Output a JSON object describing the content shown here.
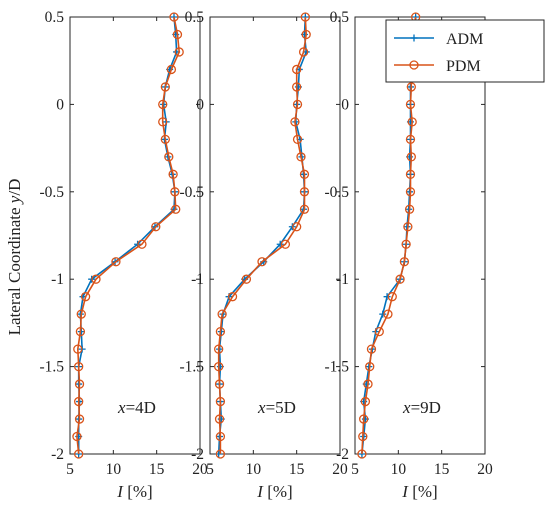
{
  "figure": {
    "ylabel": "Lateral Coordinate y/D",
    "ylabel_plain": "Lateral Coordinate ",
    "ylabel_italic": "y",
    "ylabel_rest": "/D"
  },
  "legend": {
    "items": [
      {
        "label": "ADM",
        "marker": "plus",
        "color": "#0072BD"
      },
      {
        "label": "PDM",
        "marker": "circle",
        "color": "#D95319"
      }
    ]
  },
  "chart_data": [
    {
      "type": "line",
      "annotation": "x=4D",
      "annotation_italic": "x",
      "annotation_rest": "=4D",
      "xlabel": "I [%]",
      "xlabel_italic": "I",
      "xlabel_rest": " [%]",
      "xlim": [
        5,
        20
      ],
      "ylim": [
        -2,
        0.5
      ],
      "xticks": [
        5,
        10,
        15,
        20
      ],
      "yticks": [
        -2,
        -1.5,
        -1,
        -0.5,
        0,
        0.5
      ],
      "ytick_labels": [
        "-2",
        "-1.5",
        "-1",
        "-0.5",
        "0",
        "0.5"
      ],
      "y": [
        0.5,
        0.4,
        0.3,
        0.2,
        0.1,
        0,
        -0.1,
        -0.2,
        -0.3,
        -0.4,
        -0.5,
        -0.6,
        -0.7,
        -0.8,
        -0.9,
        -1.0,
        -1.1,
        -1.2,
        -1.3,
        -1.4,
        -1.5,
        -1.6,
        -1.7,
        -1.8,
        -1.9,
        -2.0
      ],
      "series": [
        {
          "name": "ADM",
          "color": "#0072BD",
          "marker": "plus",
          "x": [
            17.0,
            17.2,
            17.3,
            16.5,
            16.0,
            15.8,
            16.1,
            15.9,
            16.3,
            16.8,
            17.1,
            17.0,
            14.8,
            12.8,
            10.2,
            7.5,
            6.5,
            6.2,
            6.3,
            6.4,
            6.0,
            6.0,
            6.1,
            6.0,
            6.0,
            6.0
          ]
        },
        {
          "name": "PDM",
          "color": "#D95319",
          "marker": "circle",
          "x": [
            17.0,
            17.4,
            17.6,
            16.7,
            16.0,
            15.7,
            15.7,
            16.0,
            16.4,
            16.9,
            17.1,
            17.2,
            14.9,
            13.3,
            10.3,
            8.0,
            6.8,
            6.3,
            6.2,
            5.9,
            6.0,
            6.1,
            6.0,
            6.1,
            5.8,
            6.0
          ]
        }
      ]
    },
    {
      "type": "line",
      "annotation": "x=5D",
      "annotation_italic": "x",
      "annotation_rest": "=5D",
      "xlabel": "I [%]",
      "xlabel_italic": "I",
      "xlabel_rest": " [%]",
      "xlim": [
        5,
        20
      ],
      "ylim": [
        -2,
        0.5
      ],
      "xticks": [
        5,
        10,
        15,
        20
      ],
      "yticks": [
        -2,
        -1.5,
        -1,
        -0.5,
        0,
        0.5
      ],
      "ytick_labels": [
        "-2",
        "-1.5",
        "-1",
        "-0.5",
        "0",
        "0.5"
      ],
      "y": [
        0.5,
        0.4,
        0.3,
        0.2,
        0.1,
        0,
        -0.1,
        -0.2,
        -0.3,
        -0.4,
        -0.5,
        -0.6,
        -0.7,
        -0.8,
        -0.9,
        -1.0,
        -1.1,
        -1.2,
        -1.3,
        -1.4,
        -1.5,
        -1.6,
        -1.7,
        -1.8,
        -1.9,
        -2.0
      ],
      "series": [
        {
          "name": "ADM",
          "color": "#0072BD",
          "marker": "plus",
          "x": [
            16.0,
            15.9,
            16.1,
            15.3,
            15.2,
            15.0,
            14.9,
            15.4,
            15.6,
            15.8,
            15.9,
            15.8,
            14.5,
            13.1,
            11.2,
            9.0,
            7.2,
            6.5,
            6.3,
            6.1,
            6.2,
            6.1,
            6.2,
            6.3,
            6.1,
            6.0
          ]
        },
        {
          "name": "PDM",
          "color": "#D95319",
          "marker": "circle",
          "x": [
            16.0,
            16.1,
            15.8,
            15.0,
            15.0,
            15.1,
            14.8,
            15.1,
            15.5,
            15.9,
            15.9,
            15.9,
            15.0,
            13.7,
            11.0,
            9.2,
            7.6,
            6.4,
            6.2,
            6.0,
            6.0,
            6.1,
            6.2,
            6.1,
            6.2,
            6.2
          ]
        }
      ]
    },
    {
      "type": "line",
      "annotation": "x=9D",
      "annotation_italic": "x",
      "annotation_rest": "=9D",
      "xlabel": "I [%]",
      "xlabel_italic": "I",
      "xlabel_rest": " [%]",
      "xlim": [
        5,
        20
      ],
      "ylim": [
        -2,
        0.5
      ],
      "xticks": [
        5,
        10,
        15,
        20
      ],
      "yticks": [
        -2,
        -1.5,
        -1,
        -0.5,
        0,
        0.5
      ],
      "ytick_labels": [
        "-2",
        "-1.5",
        "-1",
        "-0.5",
        "0",
        "0.5"
      ],
      "y": [
        0.5,
        0.4,
        0.3,
        0.2,
        0.1,
        0,
        -0.1,
        -0.2,
        -0.3,
        -0.4,
        -0.5,
        -0.6,
        -0.7,
        -0.8,
        -0.9,
        -1.0,
        -1.1,
        -1.2,
        -1.3,
        -1.4,
        -1.5,
        -1.6,
        -1.7,
        -1.8,
        -1.9,
        -2.0
      ],
      "series": [
        {
          "name": "ADM",
          "color": "#0072BD",
          "marker": "plus",
          "x": [
            12.0,
            11.8,
            11.7,
            11.5,
            11.4,
            11.4,
            11.4,
            11.4,
            11.3,
            11.4,
            11.3,
            11.2,
            11.0,
            10.9,
            10.7,
            10.2,
            8.7,
            8.2,
            7.4,
            7.0,
            6.6,
            6.3,
            6.0,
            6.2,
            6.0,
            5.8
          ]
        },
        {
          "name": "PDM",
          "color": "#D95319",
          "marker": "circle",
          "x": [
            12.0,
            11.6,
            11.6,
            11.5,
            11.5,
            11.4,
            11.6,
            11.4,
            11.5,
            11.4,
            11.4,
            11.3,
            11.1,
            10.9,
            10.7,
            10.2,
            9.3,
            8.8,
            7.8,
            6.9,
            6.7,
            6.5,
            6.2,
            6.0,
            5.9,
            5.8
          ]
        }
      ]
    }
  ]
}
